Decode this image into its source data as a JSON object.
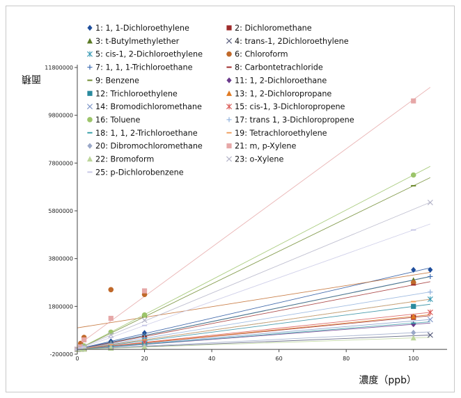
{
  "chart_data": {
    "type": "scatter",
    "xlabel": "濃度（ppb）",
    "ylabel": "面積",
    "xlim": [
      0,
      110
    ],
    "ylim": [
      -200000,
      11800000
    ],
    "x_ticks": [
      "0",
      "20",
      "40",
      "60",
      "80",
      "100"
    ],
    "y_ticks": [
      "-200000",
      "1800000",
      "3800000",
      "5800000",
      "7800000",
      "9800000",
      "11800000"
    ],
    "grid": false,
    "legend_position": "top-left, two columns",
    "series": [
      {
        "name": "1:  1, 1-Dichloroethylene",
        "marker": "diamond",
        "color": "#1f4e9c",
        "x": [
          0,
          1,
          2,
          10,
          20,
          100,
          105
        ],
        "y": [
          0,
          34000,
          69000,
          340000,
          690000,
          3330000,
          3330000
        ]
      },
      {
        "name": "2:  Dichloromethane",
        "marker": "square",
        "color": "#9e2b2b",
        "x": [
          0,
          1,
          2,
          10,
          20,
          100
        ],
        "y": [
          0,
          14000,
          28000,
          140000,
          270000,
          1340000
        ]
      },
      {
        "name": "3:  t-Butylmethylether",
        "marker": "triangle",
        "color": "#5a7a24",
        "x": [
          0,
          1,
          2,
          10,
          20,
          100
        ],
        "y": [
          0,
          29000,
          58000,
          290000,
          580000,
          2900000
        ]
      },
      {
        "name": "4:  trans-1, 2Dichloroethylene",
        "marker": "x",
        "color": "#555a7a",
        "x": [
          0,
          1,
          2,
          10,
          20,
          105
        ],
        "y": [
          0,
          6000,
          12000,
          60000,
          120000,
          600000
        ]
      },
      {
        "name": "5:  cis-1, 2-Dichloroethylene",
        "marker": "asterisk",
        "color": "#3a9bb5",
        "x": [
          0,
          1,
          2,
          10,
          20,
          105
        ],
        "y": [
          0,
          21000,
          41000,
          205000,
          410000,
          2100000
        ]
      },
      {
        "name": "6:  Chloroform",
        "marker": "circle",
        "color": "#c0692a",
        "x": [
          0,
          1,
          2,
          10,
          20,
          100
        ],
        "y": [
          0,
          250000,
          500000,
          2500000,
          2300000,
          2800000
        ]
      },
      {
        "name": "7:  1, 1, 1-Trichloroethane",
        "marker": "plus",
        "color": "#3b6ab0",
        "x": [
          0,
          1,
          2,
          10,
          20,
          105
        ],
        "y": [
          0,
          30000,
          60000,
          300000,
          600000,
          3050000
        ]
      },
      {
        "name": "8:  Carbontetrachloride",
        "marker": "dash",
        "color": "#9e2b2b",
        "x": [
          0,
          1,
          2,
          10,
          20,
          100
        ],
        "y": [
          0,
          27000,
          54000,
          270000,
          540000,
          2700000
        ]
      },
      {
        "name": "9:  Benzene",
        "marker": "dash",
        "color": "#6e8a2e",
        "x": [
          0,
          1,
          2,
          10,
          20,
          100
        ],
        "y": [
          0,
          68000,
          136000,
          680000,
          1360000,
          6850000
        ]
      },
      {
        "name": "11: 1, 2-Dichloroethane",
        "marker": "diamond",
        "color": "#6b3a8c",
        "x": [
          0,
          1,
          2,
          10,
          20,
          100
        ],
        "y": [
          0,
          10000,
          20000,
          100000,
          200000,
          1050000
        ]
      },
      {
        "name": "12: Trichloroethylene",
        "marker": "square",
        "color": "#2a8a9e",
        "x": [
          0,
          1,
          2,
          10,
          20,
          100
        ],
        "y": [
          0,
          18000,
          36000,
          180000,
          360000,
          1800000
        ]
      },
      {
        "name": "13: 1, 2-Dichloropropane",
        "marker": "triangle",
        "color": "#e07a22",
        "x": [
          0,
          1,
          2,
          10,
          20,
          100
        ],
        "y": [
          0,
          14000,
          28000,
          140000,
          280000,
          1380000
        ]
      },
      {
        "name": "14: Bromodichloromethane",
        "marker": "x",
        "color": "#7f97c8",
        "x": [
          0,
          1,
          2,
          10,
          20,
          105
        ],
        "y": [
          0,
          12500,
          25000,
          125000,
          250000,
          1250000
        ]
      },
      {
        "name": "15: cis-1, 3-Dichloropropene",
        "marker": "asterisk",
        "color": "#d9534f",
        "x": [
          0,
          1,
          2,
          10,
          20,
          105
        ],
        "y": [
          0,
          15000,
          30000,
          150000,
          300000,
          1550000
        ]
      },
      {
        "name": "16: Toluene",
        "marker": "circle",
        "color": "#9cc46a",
        "x": [
          0,
          1,
          2,
          10,
          20,
          100
        ],
        "y": [
          0,
          72000,
          144000,
          720000,
          1440000,
          7300000
        ]
      },
      {
        "name": "17: trans 1, 3-Dichloropropene",
        "marker": "plus",
        "color": "#8fb0dc",
        "x": [
          0,
          1,
          2,
          10,
          20,
          105
        ],
        "y": [
          0,
          24000,
          48000,
          240000,
          480000,
          2400000
        ]
      },
      {
        "name": "18: 1, 1, 2-Trichloroethane",
        "marker": "dash",
        "color": "#3aa0a8",
        "x": [
          0,
          1,
          2,
          10,
          20,
          100
        ],
        "y": [
          0,
          11000,
          22000,
          110000,
          220000,
          1100000
        ]
      },
      {
        "name": "19: Tetrachloroethylene",
        "marker": "dash",
        "color": "#f0a060",
        "x": [
          0,
          1,
          2,
          10,
          20,
          100
        ],
        "y": [
          0,
          20000,
          40000,
          200000,
          400000,
          2000000
        ]
      },
      {
        "name": "20: Dibromochloromethane",
        "marker": "diamond",
        "color": "#9aa8c8",
        "x": [
          0,
          1,
          2,
          10,
          20,
          100
        ],
        "y": [
          0,
          7000,
          14000,
          70000,
          140000,
          700000
        ]
      },
      {
        "name": "21: m, p-Xylene",
        "marker": "square",
        "color": "#e6a7a7",
        "x": [
          0,
          1,
          2,
          10,
          20,
          100
        ],
        "y": [
          0,
          104000,
          400000,
          1300000,
          2450000,
          10400000
        ]
      },
      {
        "name": "22: Bromoform",
        "marker": "triangle",
        "color": "#bcd59a",
        "x": [
          0,
          1,
          2,
          10,
          20,
          100
        ],
        "y": [
          0,
          5000,
          10000,
          50000,
          100000,
          480000
        ]
      },
      {
        "name": "23: o-Xylene",
        "marker": "x",
        "color": "#b4b4c8",
        "x": [
          0,
          1,
          2,
          10,
          20,
          105
        ],
        "y": [
          0,
          61000,
          122000,
          610000,
          1220000,
          6150000
        ]
      },
      {
        "name": "25: p-Dichlorobenzene",
        "marker": "dash",
        "color": "#c8c8e6",
        "x": [
          0,
          1,
          2,
          10,
          20,
          100
        ],
        "y": [
          0,
          50000,
          100000,
          500000,
          1000000,
          5000000
        ]
      }
    ]
  }
}
